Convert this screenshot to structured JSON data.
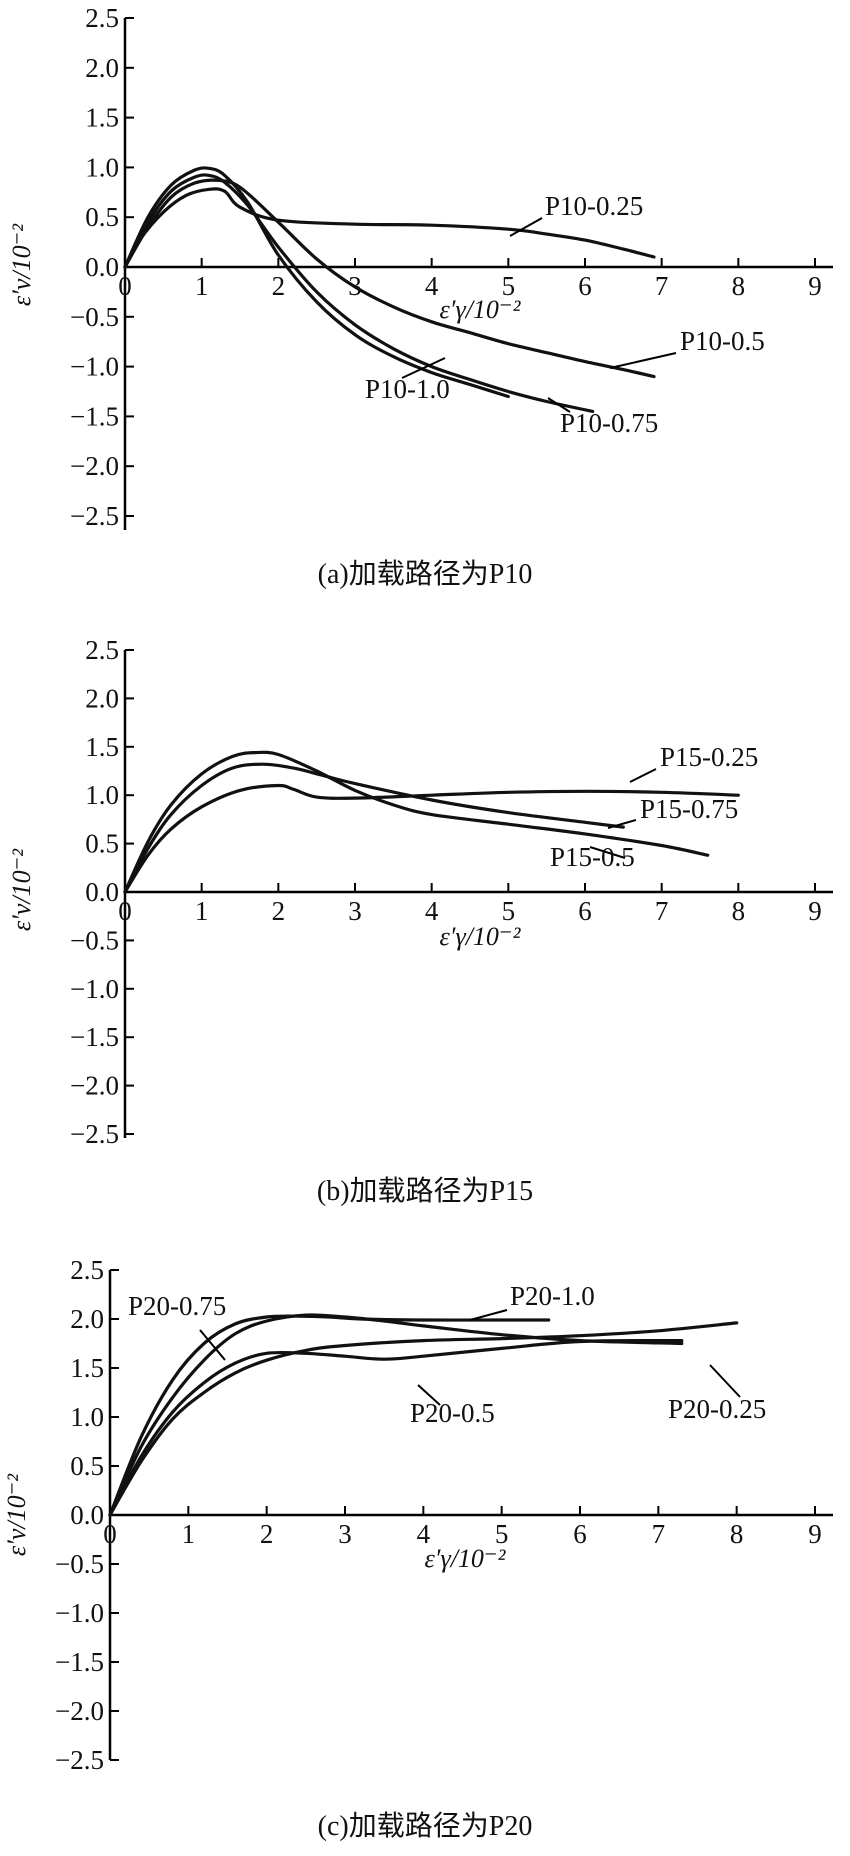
{
  "chart_data": [
    {
      "type": "line",
      "caption": "(a)加载路径为P10",
      "xlabel": "ε′γ/10⁻²",
      "ylabel": "ε′v/10⁻²",
      "xlim": [
        0,
        9
      ],
      "ylim": [
        -2.5,
        2.5
      ],
      "xticks": [
        "0",
        "1",
        "2",
        "3",
        "4",
        "5",
        "6",
        "7",
        "8",
        "9"
      ],
      "yticks": [
        "2.5",
        "2.0",
        "1.5",
        "1.0",
        "0.5",
        "0.0",
        "−0.5",
        "−1.0",
        "−1.5",
        "−2.0",
        "−2.5"
      ],
      "series": [
        {
          "name": "P10-0.25",
          "x": [
            0,
            0.2,
            0.5,
            0.8,
            1.1,
            1.3,
            1.5,
            2.0,
            3.0,
            4.0,
            5.0,
            5.5,
            6.0,
            6.5,
            6.9
          ],
          "y": [
            0,
            0.28,
            0.55,
            0.72,
            0.78,
            0.76,
            0.6,
            0.47,
            0.43,
            0.42,
            0.38,
            0.33,
            0.27,
            0.18,
            0.1
          ]
        },
        {
          "name": "P10-0.5",
          "x": [
            0,
            0.3,
            0.6,
            0.9,
            1.2,
            1.5,
            2.0,
            2.5,
            3.0,
            3.5,
            4.0,
            4.5,
            5.0,
            5.5,
            6.0,
            6.5,
            6.9
          ],
          "y": [
            0,
            0.4,
            0.7,
            0.84,
            0.87,
            0.8,
            0.45,
            0.08,
            -0.2,
            -0.4,
            -0.55,
            -0.66,
            -0.77,
            -0.86,
            -0.95,
            -1.03,
            -1.1
          ]
        },
        {
          "name": "P10-0.75",
          "x": [
            0,
            0.3,
            0.6,
            0.9,
            1.1,
            1.3,
            1.6,
            2.0,
            2.5,
            3.0,
            3.5,
            4.0,
            4.5,
            5.0,
            5.5,
            6.1
          ],
          "y": [
            0,
            0.45,
            0.76,
            0.9,
            0.92,
            0.85,
            0.62,
            0.2,
            -0.25,
            -0.58,
            -0.82,
            -1.0,
            -1.13,
            -1.25,
            -1.35,
            -1.45
          ]
        },
        {
          "name": "P10-1.0",
          "x": [
            0,
            0.3,
            0.6,
            0.9,
            1.1,
            1.3,
            1.6,
            2.0,
            2.5,
            3.0,
            3.5,
            4.0,
            4.5,
            5.0
          ],
          "y": [
            0,
            0.5,
            0.82,
            0.97,
            0.99,
            0.92,
            0.65,
            0.12,
            -0.35,
            -0.68,
            -0.9,
            -1.06,
            -1.18,
            -1.3
          ]
        }
      ],
      "annotations": [
        {
          "text": "P10-0.25",
          "series": "P10-0.25"
        },
        {
          "text": "P10-0.5",
          "series": "P10-0.5"
        },
        {
          "text": "P10-1.0",
          "series": "P10-1.0"
        },
        {
          "text": "P10-0.75",
          "series": "P10-0.75"
        }
      ]
    },
    {
      "type": "line",
      "caption": "(b)加载路径为P15",
      "xlabel": "ε′γ/10⁻²",
      "ylabel": "ε′v/10⁻²",
      "xlim": [
        0,
        9
      ],
      "ylim": [
        -2.5,
        2.5
      ],
      "xticks": [
        "0",
        "1",
        "2",
        "3",
        "4",
        "5",
        "6",
        "7",
        "8",
        "9"
      ],
      "yticks": [
        "2.5",
        "2.0",
        "1.5",
        "1.0",
        "0.5",
        "0.0",
        "−0.5",
        "−1.0",
        "−1.5",
        "−2.0",
        "−2.5"
      ],
      "series": [
        {
          "name": "P15-0.25",
          "x": [
            0,
            0.3,
            0.6,
            1.0,
            1.5,
            2.0,
            2.2,
            2.5,
            3.0,
            4.0,
            5.0,
            6.0,
            7.0,
            8.0
          ],
          "y": [
            0,
            0.38,
            0.65,
            0.88,
            1.05,
            1.1,
            1.06,
            0.98,
            0.97,
            1.0,
            1.03,
            1.04,
            1.03,
            1.0
          ]
        },
        {
          "name": "P15-0.75",
          "x": [
            0,
            0.3,
            0.6,
            1.0,
            1.4,
            1.8,
            2.2,
            2.6,
            3.0,
            4.0,
            5.0,
            6.0,
            6.5
          ],
          "y": [
            0,
            0.45,
            0.8,
            1.1,
            1.28,
            1.32,
            1.28,
            1.2,
            1.12,
            0.95,
            0.82,
            0.72,
            0.67
          ]
        },
        {
          "name": "P15-0.5",
          "x": [
            0,
            0.3,
            0.6,
            1.0,
            1.4,
            1.7,
            2.0,
            2.5,
            3.0,
            3.5,
            4.0,
            5.0,
            6.0,
            7.0,
            7.6
          ],
          "y": [
            0,
            0.52,
            0.9,
            1.22,
            1.4,
            1.44,
            1.42,
            1.25,
            1.05,
            0.9,
            0.8,
            0.7,
            0.6,
            0.48,
            0.38
          ]
        }
      ],
      "annotations": [
        {
          "text": "P15-0.25",
          "series": "P15-0.25"
        },
        {
          "text": "P15-0.75",
          "series": "P15-0.75"
        },
        {
          "text": "P15-0.5",
          "series": "P15-0.5"
        }
      ]
    },
    {
      "type": "line",
      "caption": "(c)加载路径为P20",
      "xlabel": "ε′γ/10⁻²",
      "ylabel": "ε′v/10⁻²",
      "xlim": [
        0,
        9
      ],
      "ylim": [
        -2.5,
        2.5
      ],
      "xticks": [
        "0",
        "1",
        "2",
        "3",
        "4",
        "5",
        "6",
        "7",
        "8",
        "9"
      ],
      "yticks": [
        "2.5",
        "2.0",
        "1.5",
        "1.0",
        "0.5",
        "0.0",
        "−0.5",
        "−1.0",
        "−1.5",
        "−2.0",
        "−2.5"
      ],
      "series": [
        {
          "name": "P20-1.0",
          "x": [
            0,
            0.4,
            0.8,
            1.2,
            1.6,
            2.0,
            2.4,
            2.8,
            3.2,
            4.0,
            5.0,
            5.6
          ],
          "y": [
            0,
            0.8,
            1.38,
            1.75,
            1.95,
            2.02,
            2.03,
            2.02,
            2.0,
            1.99,
            1.99,
            1.99
          ]
        },
        {
          "name": "P20-0.75",
          "x": [
            0,
            0.4,
            0.8,
            1.2,
            1.6,
            2.0,
            2.5,
            3.0,
            3.5,
            4.0,
            5.0,
            6.0,
            7.3
          ],
          "y": [
            0,
            0.7,
            1.2,
            1.58,
            1.85,
            1.98,
            2.04,
            2.02,
            1.98,
            1.93,
            1.84,
            1.78,
            1.75
          ]
        },
        {
          "name": "P20-0.5",
          "x": [
            0,
            0.4,
            0.8,
            1.2,
            1.6,
            2.0,
            2.5,
            3.0,
            3.5,
            4.0,
            5.0,
            6.0,
            7.3
          ],
          "y": [
            0,
            0.6,
            1.05,
            1.35,
            1.55,
            1.65,
            1.65,
            1.62,
            1.59,
            1.62,
            1.7,
            1.77,
            1.78
          ]
        },
        {
          "name": "P20-0.25",
          "x": [
            0,
            0.4,
            0.8,
            1.2,
            1.6,
            2.0,
            2.5,
            3.0,
            4.0,
            5.0,
            6.0,
            7.0,
            8.0
          ],
          "y": [
            0,
            0.55,
            0.98,
            1.25,
            1.45,
            1.58,
            1.68,
            1.73,
            1.78,
            1.8,
            1.83,
            1.88,
            1.96
          ]
        }
      ],
      "annotations": [
        {
          "text": "P20-0.75",
          "series": "P20-0.75"
        },
        {
          "text": "P20-1.0",
          "series": "P20-1.0"
        },
        {
          "text": "P20-0.5",
          "series": "P20-0.5"
        },
        {
          "text": "P20-0.25",
          "series": "P20-0.25"
        }
      ]
    }
  ]
}
